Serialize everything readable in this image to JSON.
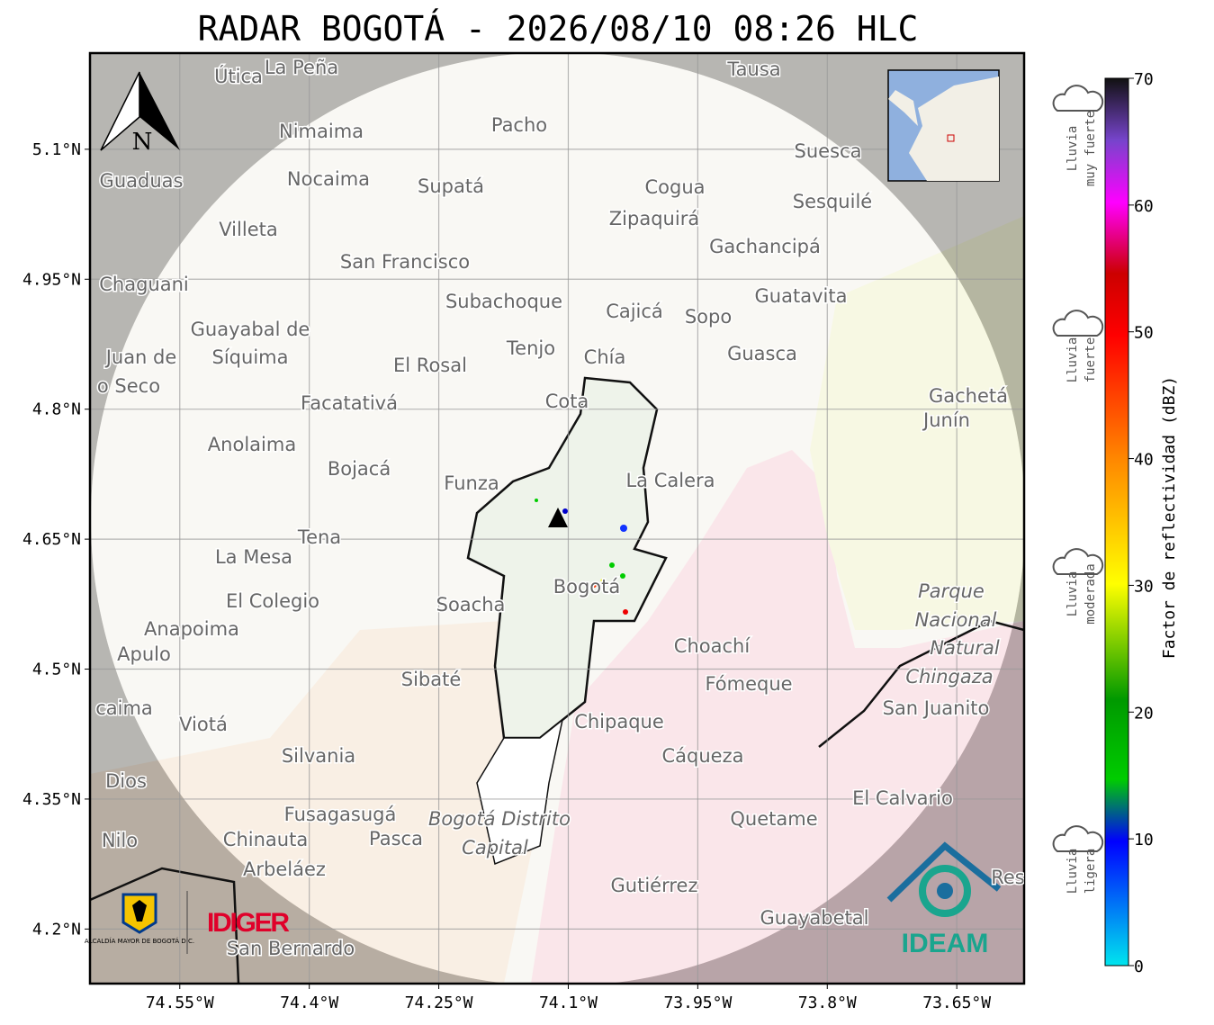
{
  "map": {
    "title": "RADAR BOGOTÁ - 2026/08/10 08:26 HLC",
    "xlim": [
      -74.654,
      -73.572
    ],
    "ylim": [
      4.137,
      5.211
    ],
    "xticks": [
      {
        "value": -74.55,
        "label": "74.55°W"
      },
      {
        "value": -74.4,
        "label": "74.4°W"
      },
      {
        "value": -74.25,
        "label": "74.25°W"
      },
      {
        "value": -74.1,
        "label": "74.1°W"
      },
      {
        "value": -73.95,
        "label": "73.95°W"
      },
      {
        "value": -73.8,
        "label": "73.8°W"
      },
      {
        "value": -73.65,
        "label": "73.65°W"
      }
    ],
    "yticks": [
      {
        "value": 4.2,
        "label": "4.2°N"
      },
      {
        "value": 4.35,
        "label": "4.35°N"
      },
      {
        "value": 4.5,
        "label": "4.5°N"
      },
      {
        "value": 4.65,
        "label": "4.65°N"
      },
      {
        "value": 4.8,
        "label": "4.8°N"
      },
      {
        "value": 4.95,
        "label": "4.95°N"
      },
      {
        "value": 5.1,
        "label": "5.1°N"
      }
    ],
    "grid": true,
    "north": "N",
    "places": [
      "Útica",
      "La Peña",
      "Tausa",
      "Pacho",
      "Nimaima",
      "Guaduas",
      "Nocaima",
      "Supatá",
      "Cogua",
      "Suesca",
      "Sesquilé",
      "Villeta",
      "Zipaquirá",
      "Gachancipá",
      "San Francisco",
      "Chaguani",
      "Subachoque",
      "Cajicá",
      "Sopo",
      "Guatavita",
      "Guayabal de",
      "Síquima",
      "Juan de",
      "o Seco",
      "Tenjo",
      "El Rosal",
      "Chía",
      "Guasca",
      "Facatativá",
      "Cota",
      "Gachetá",
      "Junín",
      "Anolaima",
      "Bojacá",
      "Funza",
      "La Calera",
      "Tena",
      "La Mesa",
      "Bogotá",
      "Soacha",
      "El Colegio",
      "Parque",
      "Nacional",
      "Natural",
      "Chingaza",
      "Anapoima",
      "Apulo",
      "Choachí",
      "Sibaté",
      "Fómeque",
      "San Juanito",
      "caima",
      "Viotá",
      "Chipaque",
      "Silvania",
      "Cáqueza",
      "Dios",
      "El Calvario",
      "Fusagasugá",
      "Quetame",
      "Bogotá Distrito",
      "Capital",
      "Nilo",
      "Chinauta",
      "Pasca",
      "Arbeláez",
      "Gutiérrez",
      "Guayabetal",
      "San Bernardo",
      "Res"
    ],
    "logos": {
      "alcaldia": "ALCALDÍA MAYOR DE BOGOTÁ D.C.",
      "idiger": "IDIGER",
      "ideam": "IDEAM"
    }
  },
  "colorbar": {
    "label": "Factor de reflectividad (dBZ)",
    "lim": [
      0,
      70
    ],
    "ticks": [
      0,
      10,
      20,
      30,
      40,
      50,
      60,
      70
    ],
    "categories": [
      [
        "Lluvia",
        "muy fuerte"
      ],
      [
        "Lluvia",
        "fuerte"
      ],
      [
        "Lluvia",
        "moderada"
      ],
      [
        "Lluvia",
        "ligera"
      ]
    ]
  }
}
